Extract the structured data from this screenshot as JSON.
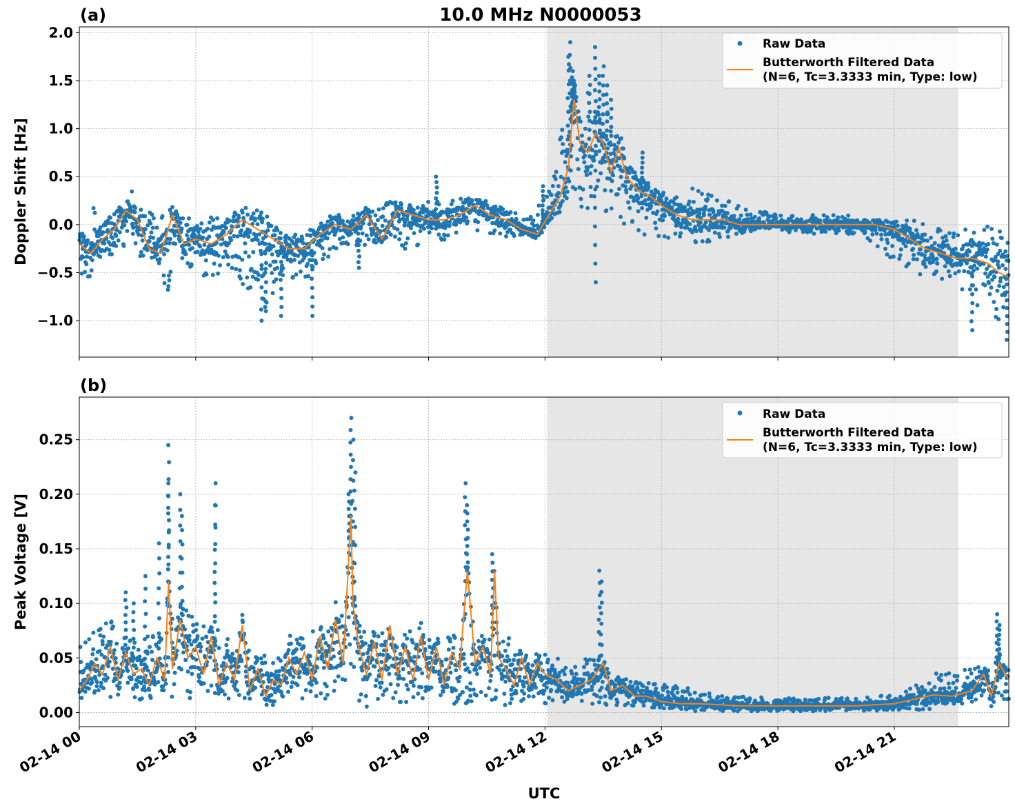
{
  "title": "10.0 MHz N0000053",
  "xlabel": "UTC",
  "colors": {
    "raw": "#1f77b4",
    "filtered": "#ff7f0e",
    "shade": "#e6e6e6",
    "grid": "#b0b0b0"
  },
  "chart_data": [
    {
      "type": "scatter",
      "panel_label": "(a)",
      "title": "10.0 MHz N0000053",
      "xlabel": "",
      "ylabel": "Doppler Shift [Hz]",
      "x_range_hours": [
        0,
        23.95
      ],
      "ylim": [
        -1.38,
        2.06
      ],
      "yticks": [
        -1.0,
        -0.5,
        0.0,
        0.5,
        1.0,
        1.5,
        2.0
      ],
      "ytick_labels": [
        "−1.0",
        "−0.5",
        "0.0",
        "0.5",
        "1.0",
        "1.5",
        "2.0"
      ],
      "shaded_span_hours": [
        12.05,
        22.65
      ],
      "grid": true,
      "legend_position": "top-right",
      "legend": [
        "Raw Data",
        "Butterworth Filtered Data",
        "(N=6, Tc=3.3333 min, Type: low)"
      ],
      "series": [
        {
          "name": "Raw Data",
          "kind": "band",
          "x": [
            0,
            0.5,
            1.0,
            1.3,
            1.6,
            2.0,
            2.3,
            2.6,
            3.0,
            3.4,
            3.8,
            4.3,
            4.8,
            5.2,
            5.6,
            6.0,
            6.5,
            7.0,
            7.5,
            8.0,
            8.5,
            9.0,
            9.5,
            10.0,
            10.5,
            11.0,
            11.5,
            12.0,
            12.3,
            12.6,
            12.8,
            13.2,
            13.6,
            13.9,
            14.2,
            14.5,
            15.0,
            15.5,
            16.0,
            16.5,
            17.0,
            17.5,
            18.0,
            18.5,
            19.0,
            19.5,
            20.0,
            20.5,
            21.0,
            21.5,
            22.0,
            22.5,
            23.0,
            23.5,
            23.95
          ],
          "low": [
            -0.6,
            -0.5,
            -0.4,
            -0.1,
            -0.4,
            -0.5,
            -0.7,
            -0.4,
            -0.5,
            -0.6,
            -0.4,
            -0.7,
            -0.9,
            -0.6,
            -0.7,
            -0.5,
            -0.3,
            -0.2,
            -0.25,
            -0.1,
            -0.3,
            -0.1,
            -0.2,
            -0.05,
            -0.1,
            -0.15,
            -0.1,
            0.0,
            0.1,
            0.3,
            0.2,
            0.15,
            0.1,
            0.0,
            -0.1,
            -0.1,
            -0.15,
            -0.15,
            -0.2,
            -0.15,
            -0.1,
            -0.05,
            -0.05,
            -0.1,
            -0.1,
            -0.1,
            -0.1,
            -0.2,
            -0.4,
            -0.5,
            -0.6,
            -0.6,
            -0.8,
            -1.0,
            -1.1
          ],
          "high": [
            0.1,
            0.2,
            0.25,
            0.4,
            0.2,
            0.1,
            0.25,
            0.1,
            0.15,
            0.1,
            0.15,
            0.1,
            0.05,
            -0.05,
            -0.05,
            -0.05,
            0.1,
            0.1,
            0.15,
            0.25,
            0.2,
            0.3,
            0.25,
            0.3,
            0.25,
            0.2,
            0.05,
            0.3,
            0.6,
            1.7,
            1.3,
            1.4,
            1.3,
            0.9,
            0.7,
            0.5,
            0.35,
            0.35,
            0.4,
            0.3,
            0.2,
            0.15,
            0.1,
            0.1,
            0.1,
            0.1,
            0.1,
            0.05,
            0.05,
            0.05,
            0.0,
            -0.05,
            -0.05,
            0.0,
            -0.1
          ]
        },
        {
          "name": "Butterworth Filtered Data",
          "kind": "line",
          "x": [
            0,
            0.3,
            0.6,
            0.9,
            1.2,
            1.5,
            1.8,
            2.1,
            2.4,
            2.7,
            3.0,
            3.4,
            3.8,
            4.2,
            4.6,
            5.0,
            5.4,
            5.8,
            6.2,
            6.6,
            7.0,
            7.4,
            7.8,
            8.2,
            8.6,
            9.0,
            9.4,
            9.8,
            10.2,
            10.6,
            11.0,
            11.4,
            11.8,
            12.1,
            12.4,
            12.6,
            12.75,
            12.9,
            13.1,
            13.3,
            13.5,
            13.7,
            13.9,
            14.1,
            14.4,
            14.7,
            15.0,
            15.4,
            15.8,
            16.2,
            16.6,
            17.0,
            17.5,
            18.0,
            18.5,
            19.0,
            19.5,
            20.0,
            20.5,
            21.0,
            21.4,
            21.8,
            22.2,
            22.6,
            23.0,
            23.4,
            23.7,
            23.95
          ],
          "y": [
            -0.2,
            -0.3,
            -0.15,
            -0.05,
            0.15,
            0.05,
            -0.25,
            -0.3,
            0.1,
            -0.2,
            -0.15,
            -0.2,
            -0.1,
            0.05,
            -0.05,
            -0.15,
            -0.25,
            -0.25,
            -0.1,
            0.0,
            -0.05,
            0.1,
            -0.15,
            0.15,
            0.1,
            0.05,
            0.05,
            0.1,
            0.2,
            0.1,
            0.05,
            -0.05,
            -0.1,
            0.1,
            0.3,
            0.6,
            1.3,
            0.85,
            0.75,
            0.95,
            0.85,
            0.55,
            0.8,
            0.5,
            0.35,
            0.3,
            0.2,
            0.1,
            0.05,
            0.05,
            0.05,
            0.0,
            0.0,
            0.0,
            0.0,
            0.0,
            0.0,
            0.0,
            0.0,
            -0.05,
            -0.15,
            -0.25,
            -0.3,
            -0.35,
            -0.35,
            -0.4,
            -0.5,
            -0.55
          ]
        }
      ],
      "scatter_outliers": {
        "x": [
          12.6,
          12.65,
          12.7,
          12.75,
          13.3,
          13.5,
          13.6,
          13.7,
          13.15,
          13.4,
          14.5,
          11.95,
          9.2,
          6.0,
          5.2,
          4.7,
          4.8,
          7.2,
          13.3,
          23.0,
          23.9
        ],
        "y": [
          1.75,
          1.9,
          1.6,
          1.5,
          1.85,
          1.65,
          1.45,
          1.3,
          1.55,
          1.55,
          0.75,
          0.4,
          0.5,
          -0.95,
          -0.95,
          -1.0,
          -0.9,
          -0.45,
          -0.6,
          -1.1,
          -1.2
        ]
      }
    },
    {
      "type": "scatter",
      "panel_label": "(b)",
      "title": "",
      "xlabel": "UTC",
      "ylabel": "Peak Voltage [V]",
      "x_range_hours": [
        0,
        23.95
      ],
      "ylim": [
        -0.013,
        0.289
      ],
      "yticks": [
        0.0,
        0.05,
        0.1,
        0.15,
        0.2,
        0.25
      ],
      "ytick_labels": [
        "0.00",
        "0.05",
        "0.10",
        "0.15",
        "0.20",
        "0.25"
      ],
      "xticks_hours": [
        0,
        3,
        6,
        9,
        12,
        15,
        18,
        21
      ],
      "xtick_labels": [
        "02-14 00",
        "02-14 03",
        "02-14 06",
        "02-14 09",
        "02-14 12",
        "02-14 15",
        "02-14 18",
        "02-14 21"
      ],
      "shaded_span_hours": [
        12.05,
        22.65
      ],
      "grid": true,
      "legend_position": "top-right",
      "legend": [
        "Raw Data",
        "Butterworth Filtered Data",
        "(N=6, Tc=3.3333 min, Type: low)"
      ],
      "series": [
        {
          "name": "Raw Data",
          "kind": "band",
          "x": [
            0,
            0.5,
            1.0,
            1.5,
            2.0,
            2.3,
            2.6,
            3.0,
            3.4,
            3.8,
            4.2,
            4.6,
            5.0,
            5.4,
            5.8,
            6.2,
            6.6,
            7.0,
            7.4,
            7.8,
            8.2,
            8.6,
            9.0,
            9.4,
            9.8,
            10.2,
            10.6,
            11.0,
            11.4,
            11.8,
            12.2,
            12.6,
            13.0,
            13.4,
            13.8,
            14.2,
            14.6,
            15.0,
            15.5,
            16.0,
            16.5,
            17.0,
            17.5,
            18.0,
            18.5,
            19.0,
            19.5,
            20.0,
            20.5,
            21.0,
            21.5,
            22.0,
            22.5,
            23.0,
            23.5,
            23.95
          ],
          "low": [
            0.01,
            0.01,
            0.015,
            0.01,
            0.015,
            0.01,
            0.015,
            0.01,
            0.02,
            0.01,
            0.01,
            0.005,
            0.005,
            0.01,
            0.01,
            0.01,
            0.01,
            0.015,
            0.005,
            0.01,
            0.01,
            0.005,
            0.01,
            0.01,
            0.005,
            0.01,
            0.01,
            0.005,
            0.01,
            0.005,
            0.005,
            0.01,
            0.01,
            0.005,
            0.005,
            0.005,
            0.005,
            0.003,
            0.002,
            0.001,
            0.001,
            0.001,
            0.001,
            0.001,
            0.001,
            0.001,
            0.001,
            0.001,
            0.001,
            0.002,
            0.002,
            0.003,
            0.005,
            0.005,
            0.008,
            0.01
          ],
          "high": [
            0.06,
            0.09,
            0.08,
            0.08,
            0.07,
            0.08,
            0.1,
            0.09,
            0.08,
            0.07,
            0.06,
            0.06,
            0.05,
            0.07,
            0.08,
            0.08,
            0.09,
            0.1,
            0.07,
            0.08,
            0.07,
            0.08,
            0.07,
            0.08,
            0.07,
            0.07,
            0.08,
            0.07,
            0.06,
            0.06,
            0.06,
            0.04,
            0.05,
            0.05,
            0.04,
            0.03,
            0.03,
            0.028,
            0.024,
            0.02,
            0.016,
            0.015,
            0.014,
            0.013,
            0.013,
            0.013,
            0.014,
            0.014,
            0.015,
            0.016,
            0.025,
            0.035,
            0.04,
            0.04,
            0.05,
            0.05
          ]
        },
        {
          "name": "Butterworth Filtered Data",
          "kind": "line",
          "x": [
            0,
            0.2,
            0.4,
            0.6,
            0.8,
            1.0,
            1.2,
            1.4,
            1.6,
            1.8,
            2.0,
            2.2,
            2.3,
            2.4,
            2.6,
            2.8,
            3.0,
            3.2,
            3.4,
            3.6,
            3.8,
            4.0,
            4.2,
            4.4,
            4.6,
            4.8,
            5.0,
            5.2,
            5.4,
            5.6,
            5.8,
            6.0,
            6.2,
            6.4,
            6.6,
            6.8,
            7.0,
            7.05,
            7.2,
            7.4,
            7.6,
            7.8,
            8.0,
            8.2,
            8.4,
            8.6,
            8.8,
            9.0,
            9.2,
            9.4,
            9.6,
            9.8,
            10.0,
            10.2,
            10.4,
            10.6,
            10.7,
            10.8,
            11.0,
            11.2,
            11.4,
            11.6,
            11.8,
            12.0,
            12.3,
            12.6,
            12.9,
            13.2,
            13.5,
            13.7,
            14.0,
            14.3,
            14.6,
            15.0,
            15.5,
            16.0,
            16.5,
            17.0,
            17.5,
            18.0,
            18.5,
            19.0,
            19.5,
            20.0,
            20.5,
            21.0,
            21.5,
            22.0,
            22.5,
            23.0,
            23.3,
            23.5,
            23.7,
            23.95
          ],
          "y": [
            0.02,
            0.03,
            0.045,
            0.035,
            0.06,
            0.03,
            0.055,
            0.035,
            0.04,
            0.025,
            0.05,
            0.03,
            0.12,
            0.04,
            0.085,
            0.05,
            0.06,
            0.035,
            0.07,
            0.025,
            0.045,
            0.03,
            0.08,
            0.02,
            0.04,
            0.015,
            0.03,
            0.025,
            0.05,
            0.035,
            0.055,
            0.03,
            0.07,
            0.04,
            0.085,
            0.045,
            0.18,
            0.1,
            0.06,
            0.035,
            0.065,
            0.03,
            0.08,
            0.035,
            0.06,
            0.03,
            0.07,
            0.03,
            0.06,
            0.025,
            0.055,
            0.04,
            0.13,
            0.045,
            0.06,
            0.035,
            0.13,
            0.05,
            0.04,
            0.025,
            0.05,
            0.025,
            0.045,
            0.035,
            0.03,
            0.02,
            0.025,
            0.03,
            0.045,
            0.02,
            0.025,
            0.015,
            0.015,
            0.01,
            0.008,
            0.008,
            0.007,
            0.006,
            0.006,
            0.006,
            0.006,
            0.006,
            0.006,
            0.006,
            0.007,
            0.008,
            0.012,
            0.016,
            0.015,
            0.02,
            0.035,
            0.015,
            0.045,
            0.03
          ]
        }
      ],
      "scatter_outliers": {
        "x": [
          2.3,
          2.3,
          2.6,
          2.65,
          3.5,
          3.5,
          6.95,
          7.0,
          7.05,
          7.1,
          9.95,
          10.0,
          10.65,
          13.4,
          13.45,
          1.7,
          2.05,
          1.2,
          1.4,
          23.65,
          23.7
        ],
        "y": [
          0.245,
          0.21,
          0.2,
          0.18,
          0.21,
          0.19,
          0.2,
          0.27,
          0.25,
          0.22,
          0.21,
          0.19,
          0.145,
          0.13,
          0.12,
          0.125,
          0.155,
          0.11,
          0.1,
          0.09,
          0.08
        ]
      }
    }
  ]
}
